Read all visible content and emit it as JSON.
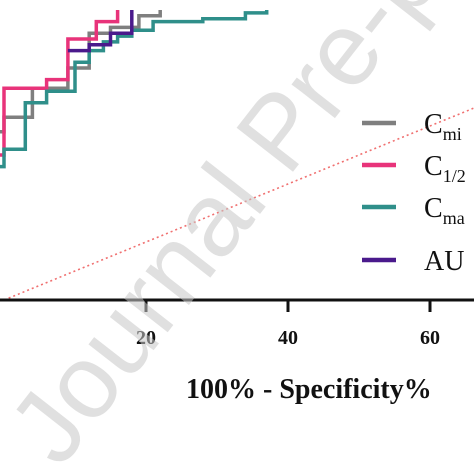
{
  "chart_data": {
    "type": "line",
    "xlabel": "100% - Specificity%",
    "xlim": [
      -0.5,
      65
    ],
    "ylim": [
      0,
      100
    ],
    "x_ticks": [
      20,
      40,
      60
    ],
    "reference_line": {
      "x": [
        0,
        100
      ],
      "y": [
        0,
        100
      ],
      "color": "#f07070",
      "style": "dotted"
    },
    "series": [
      {
        "name": "C_min",
        "color": "#7f7f7f",
        "x": [
          -1,
          0,
          0,
          4,
          4,
          9,
          9,
          12,
          12,
          15,
          15,
          19,
          19,
          22,
          22
        ],
        "y": [
          58,
          58,
          63,
          63,
          73,
          73,
          80,
          80,
          92,
          92,
          94,
          94,
          98,
          98,
          100
        ]
      },
      {
        "name": "C_1/2",
        "color": "#e8337a",
        "x": [
          -1,
          0,
          0,
          6,
          6,
          9,
          9,
          13,
          13,
          16,
          16
        ],
        "y": [
          50,
          50,
          73,
          73,
          76,
          76,
          90,
          90,
          96,
          96,
          100
        ]
      },
      {
        "name": "C_max",
        "color": "#2f8f8a",
        "x": [
          -1,
          0,
          0,
          3,
          3,
          6,
          6,
          10,
          10,
          12,
          12,
          14,
          14,
          16,
          16,
          18,
          18,
          21,
          21,
          28,
          28,
          34,
          34,
          37,
          37
        ],
        "y": [
          46,
          46,
          52,
          52,
          68,
          68,
          72,
          72,
          82,
          82,
          86,
          86,
          89,
          89,
          91,
          91,
          93,
          93,
          96,
          96,
          97,
          97,
          99,
          99,
          100
        ]
      },
      {
        "name": "AUC",
        "color": "#4a1a8c",
        "x": [
          9,
          12,
          12,
          15,
          15,
          18,
          18
        ],
        "y": [
          86,
          86,
          88,
          88,
          92,
          92,
          100
        ]
      }
    ],
    "legend": {
      "placement": "right",
      "entries": [
        {
          "main": "C",
          "sub": "mi"
        },
        {
          "main": "C",
          "sub": "1/2"
        },
        {
          "main": "C",
          "sub": "ma"
        },
        {
          "main": "AU",
          "sub": ""
        }
      ]
    }
  },
  "watermark": "Journal Pre-proof"
}
